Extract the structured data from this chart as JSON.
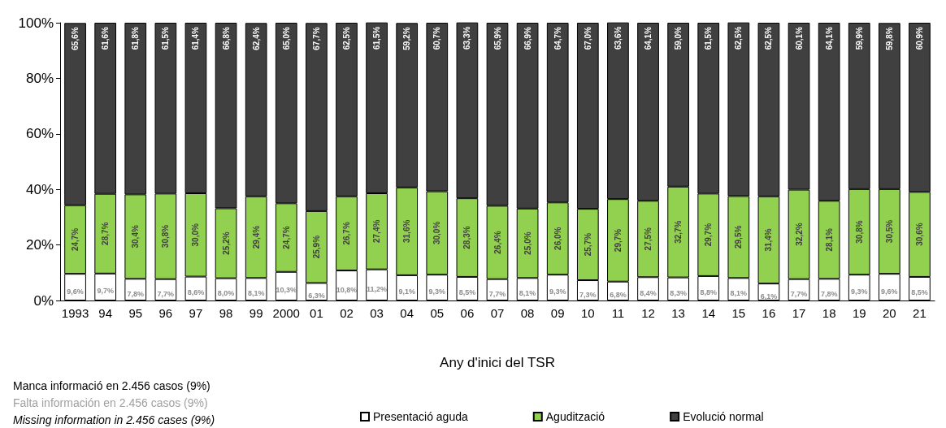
{
  "chart_data": {
    "type": "bar",
    "stacked": true,
    "xlabel": "Any d'inici del TSR",
    "categories": [
      "1993",
      "94",
      "95",
      "96",
      "97",
      "98",
      "99",
      "2000",
      "01",
      "02",
      "03",
      "04",
      "05",
      "06",
      "07",
      "08",
      "09",
      "10",
      "11",
      "12",
      "13",
      "14",
      "15",
      "16",
      "17",
      "18",
      "19",
      "20",
      "21"
    ],
    "series": [
      {
        "name": "Presentació aguda",
        "color": "#ffffff",
        "values": [
          9.6,
          9.7,
          7.8,
          7.7,
          8.6,
          8.0,
          8.1,
          10.3,
          6.3,
          10.8,
          11.2,
          9.1,
          9.3,
          8.5,
          7.7,
          8.1,
          9.3,
          7.3,
          6.8,
          8.4,
          8.3,
          8.8,
          8.1,
          6.1,
          7.7,
          7.8,
          9.3,
          9.6,
          8.5
        ],
        "value_labels": [
          "9,6%",
          "9,7%",
          "7,8%",
          "7,7%",
          "8,6%",
          "8,0%",
          "8,1%",
          "10,3%",
          "6,3%",
          "10,8%",
          "11,2%",
          "9,1%",
          "9,3%",
          "8,5%",
          "7,7%",
          "8,1%",
          "9,3%",
          "7,3%",
          "6,8%",
          "8,4%",
          "8,3%",
          "8,8%",
          "8,1%",
          "6,1%",
          "7,7%",
          "7,8%",
          "9,3%",
          "9,6%",
          "8,5%"
        ]
      },
      {
        "name": "Agudització",
        "color": "#92d050",
        "values": [
          24.7,
          28.7,
          30.4,
          30.8,
          30.0,
          25.2,
          29.4,
          24.7,
          25.9,
          26.7,
          27.4,
          31.6,
          30.0,
          28.3,
          26.4,
          25.0,
          26.0,
          25.7,
          29.7,
          27.5,
          32.7,
          29.7,
          29.5,
          31.4,
          32.2,
          28.1,
          30.8,
          30.5,
          30.6
        ],
        "value_labels": [
          "24,7%",
          "28,7%",
          "30,4%",
          "30,8%",
          "30,0%",
          "25,2%",
          "29,4%",
          "24,7%",
          "25,9%",
          "26,7%",
          "27,4%",
          "31,6%",
          "30,0%",
          "28,3%",
          "26,4%",
          "25,0%",
          "26,0%",
          "25,7%",
          "29,7%",
          "27,5%",
          "32,7%",
          "29,7%",
          "29,5%",
          "31,4%",
          "32,2%",
          "28,1%",
          "30,8%",
          "30,5%",
          "30,6%"
        ]
      },
      {
        "name": "Evolució normal",
        "color": "#404040",
        "values": [
          65.6,
          61.6,
          61.8,
          61.5,
          61.4,
          66.8,
          62.4,
          65.0,
          67.7,
          62.5,
          61.5,
          59.2,
          60.7,
          63.3,
          65.9,
          66.9,
          64.7,
          67.0,
          63.6,
          64.1,
          59.0,
          61.5,
          62.5,
          62.5,
          60.1,
          64.1,
          59.9,
          59.8,
          60.9
        ],
        "value_labels": [
          "65,6%",
          "61,6%",
          "61,8%",
          "61,5%",
          "61,4%",
          "66,8%",
          "62,4%",
          "65,0%",
          "67,7%",
          "62,5%",
          "61,5%",
          "59,2%",
          "60,7%",
          "63,3%",
          "65,9%",
          "66,9%",
          "64,7%",
          "67,0%",
          "63,6%",
          "64,1%",
          "59,0%",
          "61,5%",
          "62,5%",
          "62,5%",
          "60,1%",
          "64,1%",
          "59,9%",
          "59,8%",
          "60,9%"
        ]
      }
    ],
    "ylim": [
      0,
      100
    ],
    "yticks": [
      {
        "value": 0,
        "label": "0%"
      },
      {
        "value": 20,
        "label": "20%"
      },
      {
        "value": 40,
        "label": "40%"
      },
      {
        "value": 60,
        "label": "60%"
      },
      {
        "value": 80,
        "label": "80%"
      },
      {
        "value": 100,
        "label": "100%"
      }
    ],
    "grid": false,
    "legend": "bottom",
    "annotations": [
      "Manca informació en 2.456 casos (9%)",
      "Falta información en 2.456 casos (9%)",
      "Missing information in 2.456 cases (9%)"
    ]
  }
}
